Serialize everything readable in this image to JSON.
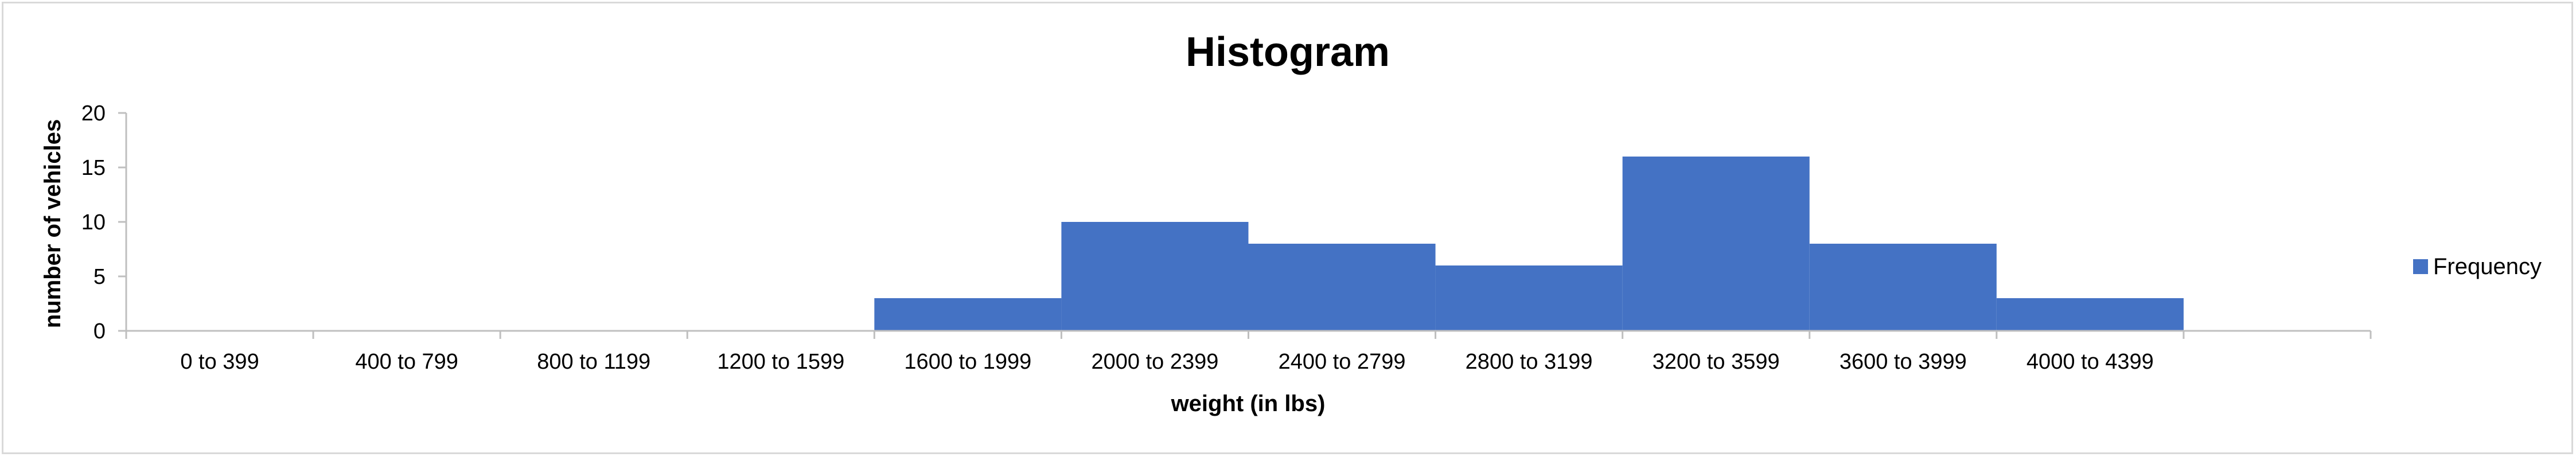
{
  "chart_data": {
    "type": "bar",
    "title": "Histogram",
    "xlabel": "weight (in lbs)",
    "ylabel": "number of vehicles",
    "categories": [
      "0 to 399",
      "400 to 799",
      "800 to 1199",
      "1200 to 1599",
      "1600 to 1999",
      "2000 to 2399",
      "2400 to 2799",
      "2800 to 3199",
      "3200 to 3599",
      "3600 to 3999",
      "4000 to 4399",
      ""
    ],
    "series": [
      {
        "name": "Frequency",
        "values": [
          0,
          0,
          0,
          0,
          3,
          10,
          8,
          6,
          16,
          8,
          3,
          0
        ]
      }
    ],
    "ylim": [
      0,
      20
    ],
    "yticks": [
      0,
      5,
      10,
      15,
      20
    ],
    "grid": false,
    "legend": "right",
    "colors": {
      "bar": "#4472C4",
      "axis": "#bfbfbf"
    }
  }
}
